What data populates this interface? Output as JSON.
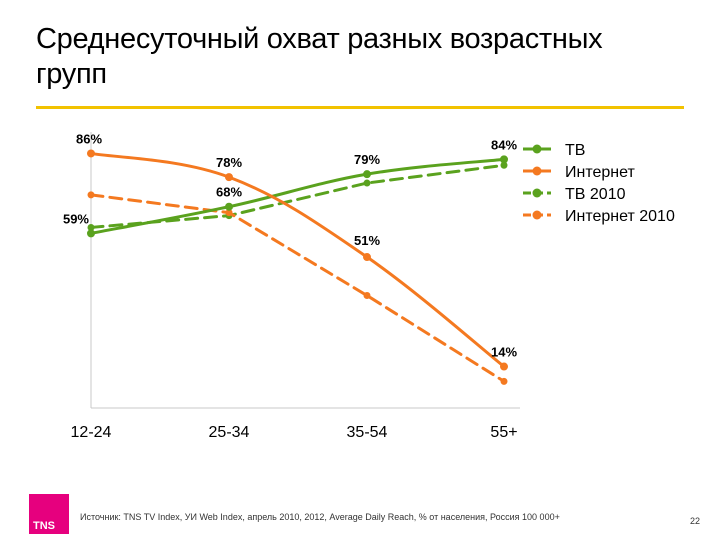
{
  "slide": {
    "title": "Среднесуточный охват разных возрастных групп",
    "source": "Источник: TNS TV Index, УИ Web Index, апрель 2010, 2012, Average Daily Reach,  % от населения, Россия 100 000+",
    "page_number": "22",
    "logo_text": "TNS"
  },
  "colors": {
    "accent_rule": "#f2c200",
    "logo_bg": "#e6007e",
    "tv": "#5aa21e",
    "internet": "#f47920"
  },
  "chart_data": {
    "type": "line",
    "categories": [
      "12-24",
      "25-34",
      "35-54",
      "55+"
    ],
    "ylim": [
      0,
      100
    ],
    "grid": false,
    "legend_position": "right",
    "series": [
      {
        "name": "ТВ",
        "values": [
          59,
          68,
          79,
          84
        ],
        "color": "#5aa21e",
        "dashed": false,
        "labels": [
          "59%",
          "68%",
          "79%",
          "84%"
        ]
      },
      {
        "name": "Интернет",
        "values": [
          86,
          78,
          51,
          14
        ],
        "color": "#f47920",
        "dashed": false,
        "labels": [
          "86%",
          "78%",
          "51%",
          "14%"
        ]
      },
      {
        "name": "ТВ 2010",
        "values": [
          61,
          65,
          76,
          82
        ],
        "color": "#5aa21e",
        "dashed": true
      },
      {
        "name": "Интернет 2010",
        "values": [
          72,
          66,
          38,
          9
        ],
        "color": "#f47920",
        "dashed": true
      }
    ]
  }
}
